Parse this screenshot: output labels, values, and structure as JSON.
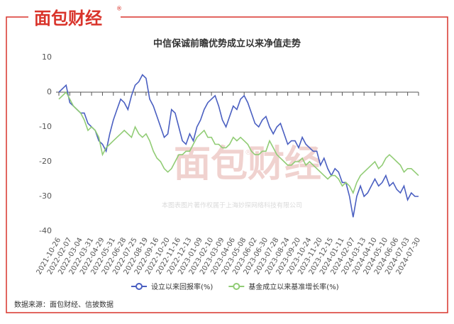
{
  "brand": {
    "logo": "面包财经",
    "mark": "®"
  },
  "watermark": {
    "logo": "面包财经",
    "mark": "®",
    "text": "本图表图片著作权属于上海妙探网络科技有限公司"
  },
  "source": "数据来源：面包财经、信披数据",
  "chart_data": {
    "type": "line",
    "title": "中信保诚前瞻优势成立以来净值走势",
    "categories": [
      "2021-10-26",
      null,
      null,
      "2022-02-07",
      null,
      null,
      "2022-03-04",
      null,
      null,
      "2022-03-31",
      null,
      null,
      "2022-04-29",
      null,
      null,
      "2022-05-31",
      null,
      null,
      "2022-06-28",
      null,
      null,
      "2022-07-25",
      null,
      null,
      "2022-08-19",
      null,
      null,
      "2022-09-16",
      null,
      null,
      "2022-10-20",
      null,
      null,
      "2022-11-16",
      null,
      null,
      "2022-12-13",
      null,
      null,
      "2023-01-09",
      null,
      null,
      "2023-02-10",
      null,
      null,
      "2023-03-09",
      null,
      null,
      "2023-04-06",
      null,
      null,
      "2023-05-08",
      null,
      null,
      "2023-06-02",
      null,
      null,
      "2023-06-30",
      null,
      null,
      "2023-07-28",
      null,
      null,
      "2023-08-24",
      null,
      null,
      "2023-09-20",
      null,
      null,
      "2023-10-24",
      null,
      null,
      "2023-11-20",
      null,
      null,
      "2023-12-15",
      null,
      null,
      "2024-01-11",
      null,
      null,
      "2024-02-07",
      null,
      null,
      "2024-03-13",
      null,
      null,
      "2024-04-10",
      null,
      null,
      "2024-05-10",
      null,
      null,
      "2024-06-06",
      null,
      null,
      "2024-07-03",
      null,
      null,
      "2024-07-30"
    ],
    "series": [
      {
        "name": "设立以来回报率(%)",
        "color": "#4a5fc1",
        "values": [
          0,
          1,
          2,
          -3,
          -4,
          -5,
          -6,
          -6,
          -9,
          -10,
          -11,
          -14,
          -15,
          -17,
          -12,
          -8,
          -5,
          -2,
          -3,
          -5,
          -1,
          2,
          3,
          5,
          4,
          -2,
          -4,
          -7,
          -10,
          -13,
          -12,
          -5,
          -6,
          -10,
          -14,
          -15,
          -12,
          -14,
          -10,
          -8,
          -5,
          -3,
          -2,
          -1,
          -4,
          -8,
          -10,
          -7,
          -4,
          -5,
          -2,
          -1,
          -3,
          -6,
          -9,
          -10,
          -8,
          -7,
          -10,
          -12,
          -10,
          -9,
          -12,
          -15,
          -14,
          -14,
          -16,
          -13,
          -15,
          -16,
          -17,
          -17,
          -21,
          -19,
          -22,
          -24,
          -22,
          -23,
          -26,
          -26,
          -30,
          -36,
          -30,
          -27,
          -30,
          -29,
          -27,
          -25,
          -27,
          -26,
          -24,
          -27,
          -26,
          -28,
          -29,
          -27,
          -31,
          -29,
          -30,
          -30
        ]
      },
      {
        "name": "基金成立以来基准增长率(%)",
        "color": "#91cc75",
        "values": [
          -2,
          -1,
          0,
          -2,
          -4,
          -5,
          -6,
          -8,
          -11,
          -10,
          -11,
          -13,
          -18,
          -16,
          -15,
          -14,
          -13,
          -12,
          -11,
          -12,
          -13,
          -10,
          -12,
          -13,
          -12,
          -14,
          -17,
          -19,
          -20,
          -22,
          -23,
          -22,
          -20,
          -18,
          -18,
          -17,
          -17,
          -15,
          -13,
          -12,
          -11,
          -13,
          -13,
          -15,
          -15,
          -16,
          -16,
          -15,
          -13,
          -14,
          -13,
          -14,
          -15,
          -17,
          -18,
          -18,
          -17,
          -17,
          -14,
          -16,
          -18,
          -19,
          -20,
          -21,
          -21,
          -20,
          -20,
          -19,
          -21,
          -20,
          -21,
          -22,
          -23,
          -24,
          -25,
          -24,
          -24,
          -25,
          -27,
          -26,
          -27,
          -29,
          -26,
          -24,
          -23,
          -22,
          -21,
          -20,
          -22,
          -21,
          -19,
          -18,
          -19,
          -20,
          -21,
          -23,
          -22,
          -22,
          -23,
          -24
        ]
      }
    ],
    "ylim": [
      -40,
      10
    ],
    "yticks": [
      10,
      0,
      -10,
      -20,
      -30,
      -40
    ],
    "grid": false
  }
}
